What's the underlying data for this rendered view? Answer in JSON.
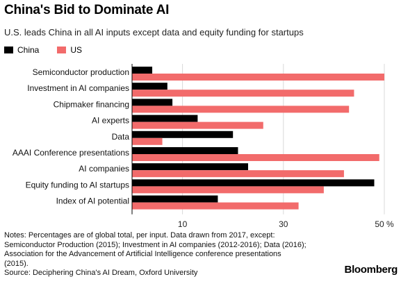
{
  "header": {
    "title": "China's Bid to Dominate AI",
    "subtitle": "U.S. leads China in all AI inputs except data and equity funding for startups"
  },
  "legend": [
    {
      "label": "China",
      "color": "#000000"
    },
    {
      "label": "US",
      "color": "#f26b6b"
    }
  ],
  "chart_data": {
    "type": "bar",
    "orientation": "horizontal",
    "title": "China's Bid to Dominate AI",
    "subtitle": "U.S. leads China in all AI inputs except data and equity funding for startups",
    "categories": [
      "Semiconductor production",
      "Investment in AI companies",
      "Chipmaker financing",
      "AI experts",
      "Data",
      "AAAI Conference presentations",
      "AI companies",
      "Equity funding to AI startups",
      "Index of AI potential"
    ],
    "series": [
      {
        "name": "China",
        "color": "#000000",
        "values": [
          4,
          7,
          8,
          13,
          20,
          21,
          23,
          48,
          17
        ]
      },
      {
        "name": "US",
        "color": "#f26b6b",
        "values": [
          50,
          44,
          43,
          26,
          6,
          49,
          42,
          38,
          33
        ]
      }
    ],
    "xlim": [
      0,
      50
    ],
    "xticks": [
      10,
      30,
      50
    ],
    "xtick_labels": [
      "10",
      "30",
      "50 %"
    ],
    "xlabel": "",
    "ylabel": "",
    "grid": true
  },
  "notes": {
    "lines": [
      "Notes: Percentages are of global total, per input. Data drawn from 2017, except:",
      "Semiconductor Production (2015); Investment in AI companies (2012-2016); Data (2016);",
      "Association for the Advancement of Artificial Intelligence conference presentations",
      "(2015).",
      "Source: Deciphering China's AI Dream, Oxford University"
    ]
  },
  "brand": "Bloomberg"
}
